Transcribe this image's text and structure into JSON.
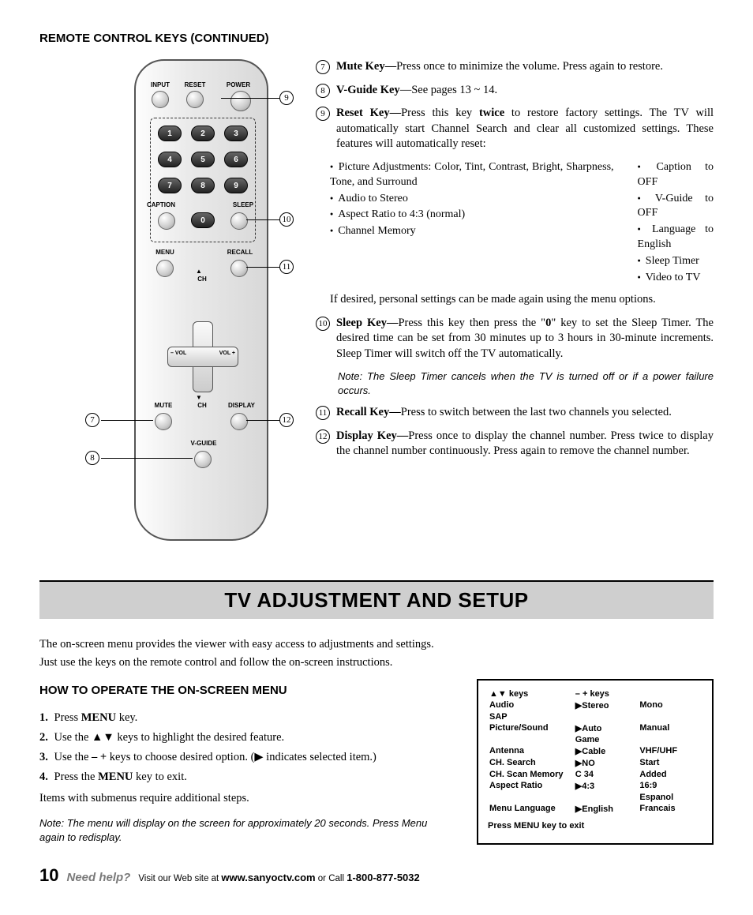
{
  "heading_top": "REMOTE CONTROL KEYS (CONTINUED)",
  "remote_labels": {
    "input": "INPUT",
    "reset": "RESET",
    "power": "POWER",
    "caption": "CAPTION",
    "sleep": "SLEEP",
    "menu": "MENU",
    "recall": "RECALL",
    "mute": "MUTE",
    "ch": "CH",
    "display": "DISPLAY",
    "vguide": "V-GUIDE",
    "vol_minus": "– VOL",
    "vol_plus": "VOL +"
  },
  "callouts": {
    "c7": "7",
    "c8": "8",
    "c9": "9",
    "c10": "10",
    "c11": "11",
    "c12": "12"
  },
  "items": {
    "i7": {
      "num": "7",
      "title": "Mute Key—",
      "text": "Press once to minimize the volume. Press again to restore."
    },
    "i8": {
      "num": "8",
      "title": "V-Guide Key",
      "text": "—See pages 13 ~ 14."
    },
    "i9": {
      "num": "9",
      "title": "Reset Key—",
      "lead": "Press this key ",
      "bold": "twice",
      "tail": " to restore factory settings. The TV will automatically start Channel Search and clear all customized settings. These features will automatically reset:"
    },
    "i9_list_left": [
      "Picture Adjustments: Color, Tint, Contrast, Bright, Sharpness, Tone, and Surround",
      "Audio to Stereo",
      "Aspect Ratio to 4:3 (normal)",
      "Channel Memory"
    ],
    "i9_list_right": [
      "Caption to OFF",
      "V-Guide to OFF",
      "Language to English",
      "Sleep Timer",
      "Video to TV"
    ],
    "i9_after": "If desired, personal settings can be made again using the menu options.",
    "i10": {
      "num": "10",
      "title": "Sleep Key—",
      "lead": "Press this key then press the \"",
      "bold": "0",
      "tail": "\" key to set the Sleep Timer. The desired time can be set from 30 minutes up to 3 hours in 30-minute increments. Sleep Timer will switch off the TV automatically."
    },
    "i10_note_label": "Note:",
    "i10_note": "The Sleep Timer cancels when the TV is turned off or if a power failure occurs.",
    "i11": {
      "num": "11",
      "title": "Recall Key—",
      "text": "Press to switch between the last two channels you selected."
    },
    "i12": {
      "num": "12",
      "title": "Display Key—",
      "text": "Press once to display the channel number. Press twice to display the channel number continuously. Press again to remove the channel number."
    }
  },
  "banner": "TV ADJUSTMENT AND SETUP",
  "intro1": "The on-screen menu provides the viewer with easy access to adjustments and settings.",
  "intro2": "Just use the keys on the remote control and follow the on-screen instructions.",
  "subhead": "HOW TO OPERATE THE ON-SCREEN MENU",
  "steps": [
    {
      "n": "1.",
      "pre": "Press ",
      "b": "MENU",
      "post": " key."
    },
    {
      "n": "2.",
      "pre": "Use the ",
      "sym": "▲▼",
      "post": " keys to highlight the desired feature."
    },
    {
      "n": "3.",
      "pre": "Use the ",
      "b": "– +",
      "post": " keys to choose desired option. (",
      "sym2": "▶",
      "post2": " indicates selected item.)"
    },
    {
      "n": "4.",
      "pre": "Press the ",
      "b": "MENU",
      "post": " key to exit."
    }
  ],
  "substeps_after": "Items with submenus require additional steps.",
  "note2_label": "Note:",
  "note2": "The menu will display on the screen for approximately 20 seconds. Press Menu again to redisplay.",
  "menu_box": {
    "rows": [
      [
        "▲▼ keys",
        "– + keys",
        ""
      ],
      [
        "Audio",
        "▶Stereo",
        "Mono"
      ],
      [
        "SAP",
        "",
        ""
      ],
      [
        "Picture/Sound",
        "▶Auto",
        "Manual"
      ],
      [
        "",
        "  Game",
        ""
      ],
      [
        "Antenna",
        "▶Cable",
        "VHF/UHF"
      ],
      [
        "CH. Search",
        "▶NO",
        "Start"
      ],
      [
        "CH. Scan Memory",
        "  C 34",
        "Added"
      ],
      [
        "Aspect Ratio",
        "▶4:3",
        "16:9"
      ],
      [
        "",
        "",
        "Espanol"
      ],
      [
        "Menu Language",
        "▶English",
        "Francais"
      ]
    ],
    "footer": "Press MENU key to exit"
  },
  "footer": {
    "page": "10",
    "help": "Need help?",
    "t1": "Visit our Web site at ",
    "url": "www.sanyoctv.com",
    "t2": " or Call ",
    "phone": "1-800-877-5032"
  },
  "colors": {
    "banner_bg": "#cfcfcf",
    "help_gray": "#7a7a7a"
  }
}
